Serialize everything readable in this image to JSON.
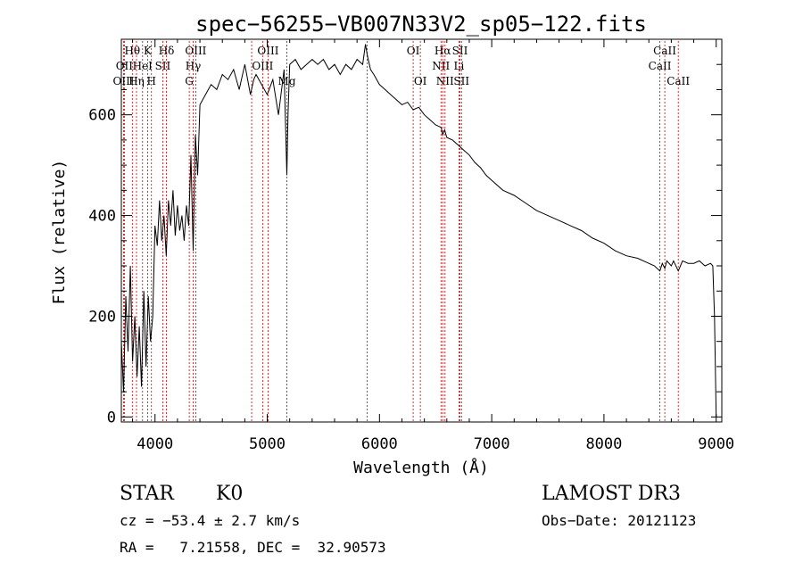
{
  "chart_data": {
    "type": "line",
    "title": "spec−56255−VB007N33V2_sp05−122.fits",
    "xlabel": "Wavelength (Å)",
    "ylabel": "Flux (relative)",
    "xlim": [
      3700,
      9050
    ],
    "ylim": [
      -10,
      750
    ],
    "xticks": [
      4000,
      5000,
      6000,
      7000,
      8000,
      9000
    ],
    "xtick_labels": [
      "4000",
      "5000",
      "6000",
      "7000",
      "8000",
      "9000"
    ],
    "yticks": [
      0,
      200,
      400,
      600
    ],
    "ytick_labels": [
      "0",
      "200",
      "400",
      "600"
    ],
    "grid": false,
    "color": "#000000",
    "series": [
      {
        "name": "flux",
        "x": [
          3700,
          3720,
          3740,
          3760,
          3780,
          3800,
          3820,
          3840,
          3860,
          3880,
          3900,
          3920,
          3940,
          3960,
          3980,
          4000,
          4020,
          4040,
          4060,
          4080,
          4100,
          4120,
          4140,
          4160,
          4180,
          4200,
          4220,
          4240,
          4260,
          4280,
          4300,
          4320,
          4340,
          4360,
          4380,
          4400,
          4450,
          4500,
          4550,
          4600,
          4650,
          4700,
          4750,
          4800,
          4850,
          4880,
          4900,
          4950,
          5000,
          5050,
          5100,
          5150,
          5175,
          5185,
          5200,
          5250,
          5300,
          5350,
          5400,
          5450,
          5500,
          5550,
          5600,
          5650,
          5700,
          5750,
          5800,
          5850,
          5875,
          5890,
          5900,
          5920,
          5950,
          6000,
          6050,
          6100,
          6150,
          6200,
          6250,
          6300,
          6350,
          6400,
          6450,
          6500,
          6550,
          6563,
          6580,
          6600,
          6650,
          6700,
          6750,
          6800,
          6850,
          6900,
          6950,
          7000,
          7100,
          7200,
          7300,
          7400,
          7500,
          7600,
          7700,
          7800,
          7900,
          8000,
          8100,
          8200,
          8300,
          8400,
          8450,
          8498,
          8520,
          8542,
          8560,
          8600,
          8620,
          8662,
          8700,
          8750,
          8800,
          8850,
          8900,
          8950,
          8970,
          8985,
          9000
        ],
        "y": [
          150,
          50,
          240,
          130,
          300,
          110,
          200,
          80,
          180,
          60,
          250,
          100,
          240,
          150,
          200,
          380,
          340,
          430,
          350,
          400,
          320,
          430,
          380,
          450,
          360,
          420,
          370,
          400,
          350,
          420,
          380,
          520,
          330,
          560,
          480,
          620,
          640,
          660,
          650,
          680,
          670,
          690,
          650,
          700,
          640,
          670,
          680,
          660,
          640,
          670,
          600,
          690,
          480,
          600,
          700,
          710,
          690,
          700,
          710,
          700,
          710,
          690,
          700,
          680,
          700,
          690,
          710,
          700,
          740,
          720,
          710,
          690,
          680,
          660,
          650,
          640,
          630,
          620,
          625,
          610,
          615,
          600,
          590,
          580,
          575,
          560,
          570,
          555,
          550,
          540,
          530,
          520,
          505,
          495,
          480,
          470,
          450,
          440,
          425,
          410,
          400,
          390,
          380,
          370,
          355,
          345,
          330,
          320,
          315,
          305,
          300,
          290,
          305,
          295,
          310,
          300,
          310,
          290,
          310,
          305,
          305,
          310,
          300,
          305,
          300,
          200,
          0
        ]
      }
    ],
    "line_markers": [
      {
        "label": "Hθ",
        "x": 3798,
        "row": 1
      },
      {
        "label": "OII",
        "x": 3727,
        "row": 2
      },
      {
        "label": "OIII",
        "x": 3720,
        "row": 3
      },
      {
        "label": "K",
        "x": 3934,
        "row": 1
      },
      {
        "label": "HeI",
        "x": 3889,
        "row": 2
      },
      {
        "label": "Hη",
        "x": 3835,
        "row": 3
      },
      {
        "label": "Hδ",
        "x": 4102,
        "row": 1
      },
      {
        "label": "SII",
        "x": 4069,
        "row": 2
      },
      {
        "label": "H",
        "x": 3968,
        "row": 3
      },
      {
        "label": "OIII",
        "x": 4363,
        "row": 1
      },
      {
        "label": "Hγ",
        "x": 4340,
        "row": 2
      },
      {
        "label": "G",
        "x": 4305,
        "row": 3
      },
      {
        "label": "OIII",
        "x": 5007,
        "row": 1
      },
      {
        "label": "OIII",
        "x": 4959,
        "row": 2
      },
      {
        "label": "Mg",
        "x": 5175,
        "row": 3
      },
      {
        "label": "OI",
        "x": 6300,
        "row": 1
      },
      {
        "label": "OI",
        "x": 6364,
        "row": 3
      },
      {
        "label": "Hα",
        "x": 6563,
        "row": 1
      },
      {
        "label": "SII",
        "x": 6717,
        "row": 1
      },
      {
        "label": "NII",
        "x": 6548,
        "row": 2
      },
      {
        "label": "Li",
        "x": 6708,
        "row": 2
      },
      {
        "label": "NII",
        "x": 6584,
        "row": 3
      },
      {
        "label": "SII",
        "x": 6731,
        "row": 3
      },
      {
        "label": "CaII",
        "x": 8542,
        "row": 1
      },
      {
        "label": "CaII",
        "x": 8498,
        "row": 2
      },
      {
        "label": "CaII",
        "x": 8662,
        "row": 3
      }
    ],
    "extra_lines": [
      4861,
      5890
    ],
    "marker_color": "#cc0000"
  },
  "footer": {
    "class_label": "STAR",
    "subclass": "K0",
    "survey": "LAMOST DR3",
    "cz": "cz = −53.4 ± 2.7 km/s",
    "obs_date": "Obs−Date: 20121123",
    "radec": "RA =   7.21558, DEC =  32.90573"
  }
}
